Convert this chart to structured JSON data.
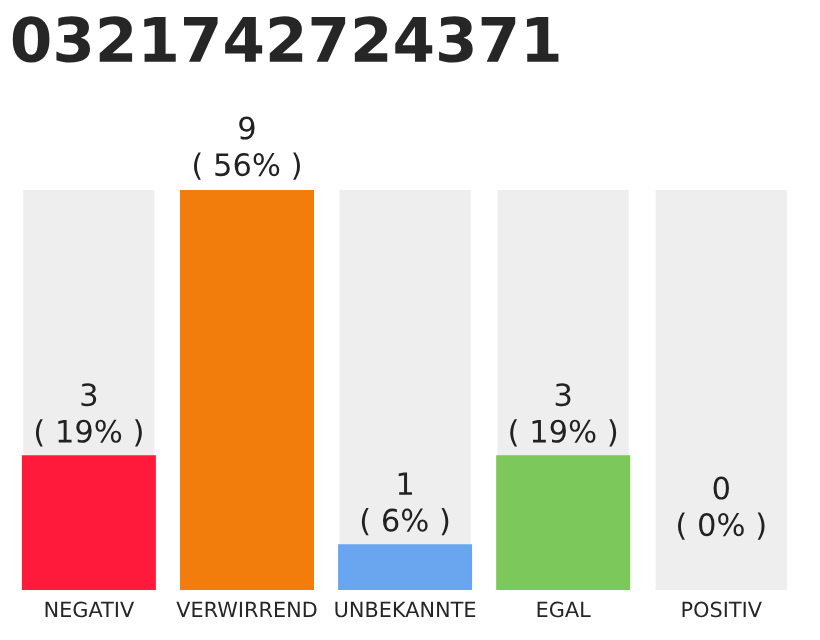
{
  "chart_data": {
    "type": "bar",
    "title": "0321742724371",
    "categories": [
      "NEGATIV",
      "VERWIRREND",
      "UNBEKANNTE",
      "EGAL",
      "POSITIV"
    ],
    "values": [
      3,
      9,
      1,
      3,
      0
    ],
    "colors": [
      "#ff1a3c",
      "#f27c0c",
      "#6aa6ef",
      "#7cc85a",
      "#eeeeee"
    ],
    "value_labels": [
      "3\n( 19% )",
      "9\n( 56% )",
      "1\n( 6% )",
      "3\n( 19% )",
      "0\n( 0% )"
    ],
    "grid": false,
    "legend": false
  }
}
